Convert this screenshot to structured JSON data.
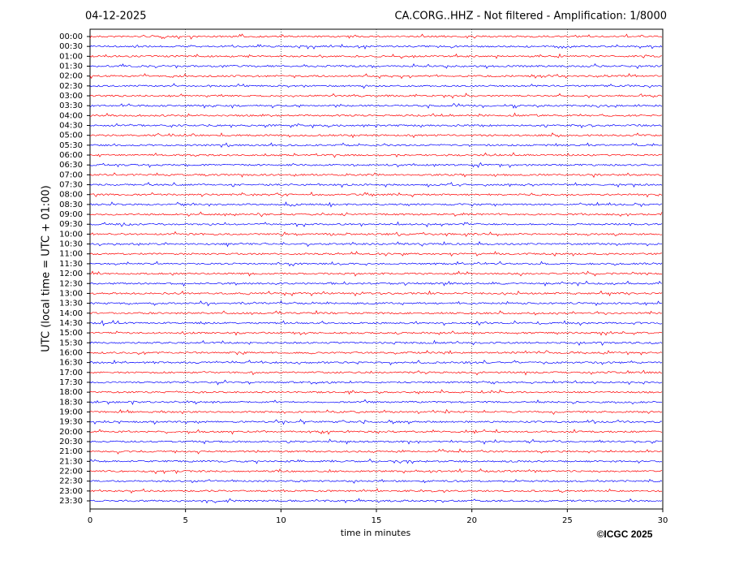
{
  "chart_data": {
    "type": "helicorder",
    "date": "04-12-2025",
    "title": "CA.CORG..HHZ - Not filtered - Amplification: 1/8000",
    "ylabel": "UTC (local time = UTC + 01:00)",
    "xlabel": "time in minutes",
    "credit": "©ICGC 2025",
    "xlim": [
      0,
      30
    ],
    "xticks": [
      0,
      5,
      10,
      15,
      20,
      25,
      30
    ],
    "grid": true,
    "colors": [
      "#ff0000",
      "#0000ff"
    ],
    "categories": [
      "00:00",
      "00:30",
      "01:00",
      "01:30",
      "02:00",
      "02:30",
      "03:00",
      "03:30",
      "04:00",
      "04:30",
      "05:00",
      "05:30",
      "06:00",
      "06:30",
      "07:00",
      "07:30",
      "08:00",
      "08:30",
      "09:00",
      "09:30",
      "10:00",
      "10:30",
      "11:00",
      "11:30",
      "12:00",
      "12:30",
      "13:00",
      "13:30",
      "14:00",
      "14:30",
      "15:00",
      "15:30",
      "16:00",
      "16:30",
      "17:00",
      "17:30",
      "18:00",
      "18:30",
      "19:00",
      "19:30",
      "20:00",
      "20:30",
      "21:00",
      "21:30",
      "22:00",
      "22:30",
      "23:00",
      "23:30"
    ]
  }
}
